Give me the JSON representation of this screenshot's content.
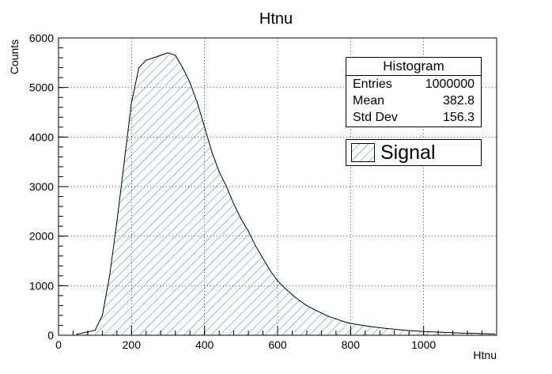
{
  "chart_data": {
    "type": "histogram",
    "title": "Htnu",
    "xlabel": "Htnu",
    "ylabel": "Counts",
    "xlim": [
      0,
      1200
    ],
    "ylim": [
      0,
      6000
    ],
    "xticks": [
      0,
      200,
      400,
      600,
      800,
      1000
    ],
    "yticks": [
      0,
      1000,
      2000,
      3000,
      4000,
      5000,
      6000
    ],
    "grid": true,
    "fill_color": "#2a8a9a",
    "fill_pattern": "diagonal-hatch",
    "series": [
      {
        "name": "Signal",
        "x": [
          50,
          100,
          120,
          140,
          160,
          180,
          200,
          220,
          240,
          260,
          280,
          300,
          320,
          340,
          360,
          380,
          400,
          420,
          440,
          460,
          480,
          500,
          520,
          540,
          560,
          580,
          600,
          620,
          640,
          660,
          680,
          700,
          720,
          740,
          760,
          780,
          800,
          850,
          900,
          950,
          1000,
          1050,
          1100,
          1150,
          1195
        ],
        "y": [
          20,
          100,
          400,
          1200,
          2300,
          3500,
          4700,
          5400,
          5550,
          5600,
          5650,
          5700,
          5650,
          5400,
          5100,
          4700,
          4200,
          3700,
          3300,
          3000,
          2650,
          2350,
          2100,
          1800,
          1550,
          1300,
          1100,
          950,
          820,
          700,
          600,
          520,
          450,
          380,
          330,
          280,
          240,
          180,
          135,
          100,
          75,
          60,
          45,
          35,
          25
        ]
      }
    ]
  },
  "stats": {
    "title": "Histogram",
    "rows": [
      {
        "label": "Entries",
        "value": "1000000"
      },
      {
        "label": "Mean",
        "value": "382.8"
      },
      {
        "label": "Std Dev",
        "value": "156.3"
      }
    ]
  },
  "legend": {
    "label": "Signal"
  }
}
